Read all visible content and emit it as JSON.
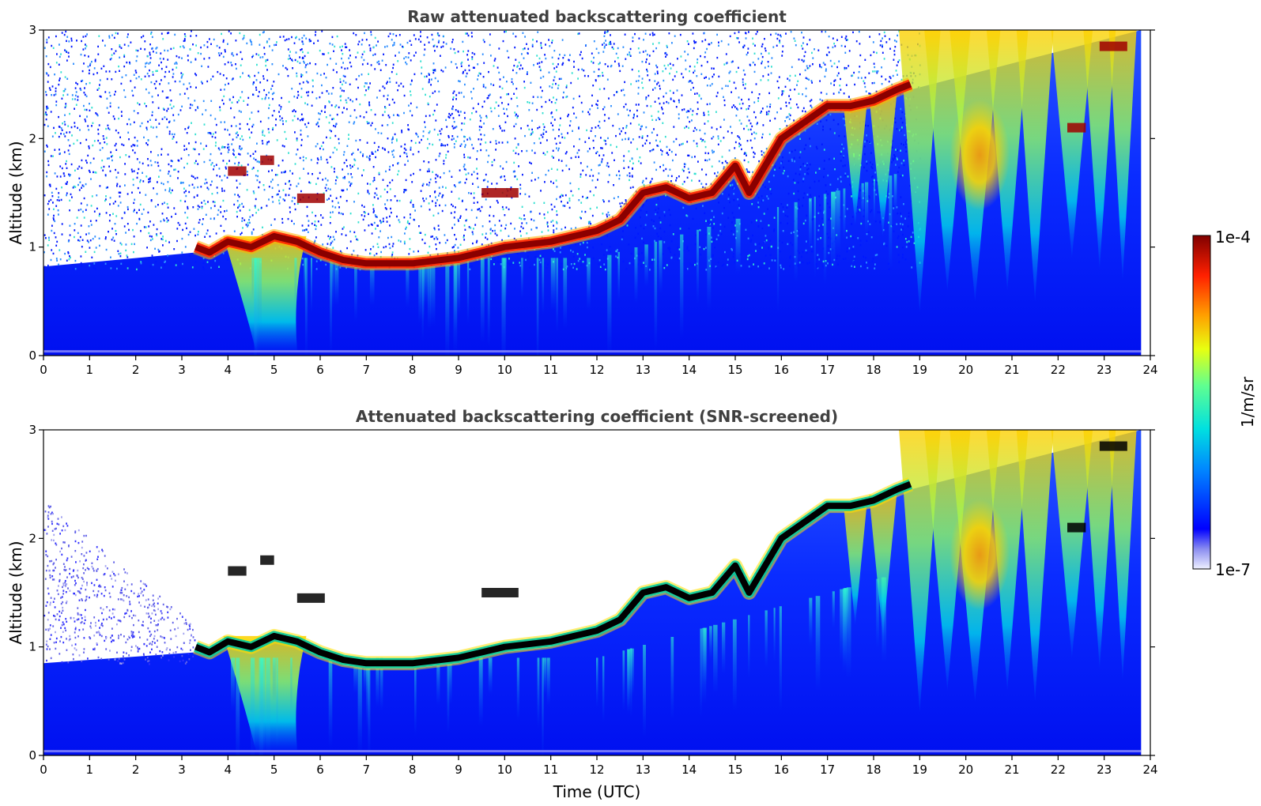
{
  "chart_data": [
    {
      "type": "heatmap",
      "title": "Raw attenuated backscattering coefficient",
      "xlabel": "",
      "ylabel": "Altitude (km)",
      "xlim": [
        0,
        24
      ],
      "ylim": [
        0,
        3
      ],
      "xticks": [
        "0",
        "1",
        "2",
        "3",
        "4",
        "5",
        "6",
        "7",
        "8",
        "9",
        "10",
        "11",
        "12",
        "13",
        "14",
        "15",
        "16",
        "17",
        "18",
        "19",
        "20",
        "21",
        "22",
        "23",
        "24"
      ],
      "yticks": [
        "0",
        "1",
        "2",
        "3"
      ],
      "data_end_time": 23.8,
      "cloud_layer": {
        "description_values": "boundary-layer top altitude (km) vs time (UTC)",
        "time": [
          3.3,
          3.6,
          4.0,
          4.5,
          5.0,
          5.5,
          6.0,
          6.5,
          7.0,
          8.0,
          9.0,
          10.0,
          11.0,
          12.0,
          12.5,
          13.0,
          13.5,
          14.0,
          14.5,
          15.0,
          15.3,
          16.0,
          16.5,
          17.0,
          17.5,
          18.0,
          18.5,
          18.8
        ],
        "altitude": [
          1.0,
          0.95,
          1.05,
          1.0,
          1.1,
          1.05,
          0.95,
          0.88,
          0.85,
          0.85,
          0.9,
          1.0,
          1.05,
          1.15,
          1.25,
          1.5,
          1.55,
          1.45,
          1.5,
          1.75,
          1.5,
          2.0,
          2.15,
          2.3,
          2.3,
          2.35,
          2.45,
          2.5
        ]
      }
    },
    {
      "type": "heatmap",
      "title": "Attenuated backscattering coefficient (SNR-screened)",
      "xlabel": "Time (UTC)",
      "ylabel": "Altitude (km)",
      "xlim": [
        0,
        24
      ],
      "ylim": [
        0,
        3
      ],
      "xticks": [
        "0",
        "1",
        "2",
        "3",
        "4",
        "5",
        "6",
        "7",
        "8",
        "9",
        "10",
        "11",
        "12",
        "13",
        "14",
        "15",
        "16",
        "17",
        "18",
        "19",
        "20",
        "21",
        "22",
        "23",
        "24"
      ],
      "yticks": [
        "0",
        "1",
        "2",
        "3"
      ]
    }
  ],
  "colorbar": {
    "label": "1/m/sr",
    "max_label": "1e-4",
    "min_label": "1e-7",
    "scale": "log",
    "range": [
      1e-07,
      0.0001
    ]
  }
}
